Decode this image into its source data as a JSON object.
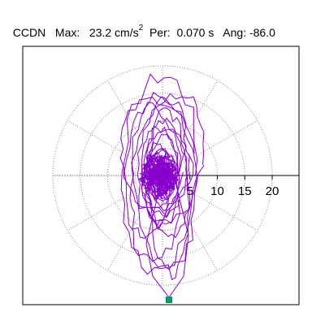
{
  "header": {
    "station": "CCDN",
    "max_label": "Max:",
    "max_value": "23.2 cm/s",
    "max_exp": "2",
    "per_label": "Per:",
    "per_value": "0.070 s",
    "ang_label": "Ang:",
    "ang_value": "-86.0"
  },
  "chart_data": {
    "type": "polar-orbit",
    "radial_ticks": [
      5,
      10,
      15,
      20
    ],
    "rings": [
      5,
      10,
      15,
      20
    ],
    "spokes_deg": [
      0,
      30,
      60,
      90,
      120,
      150,
      180,
      210,
      240,
      270,
      300,
      330
    ],
    "max_amplitude": 23.2,
    "peak_angle_deg": -86.0,
    "colors": {
      "trace": "#8800cc",
      "grid": "#888888",
      "marker": "#009966",
      "axis": "#000000"
    }
  }
}
